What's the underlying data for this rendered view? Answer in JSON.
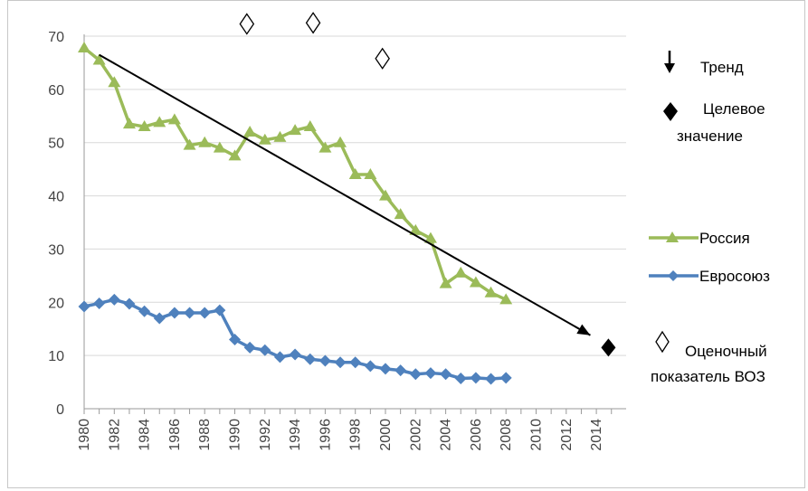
{
  "chart_data": {
    "type": "line",
    "title": "",
    "xlabel": "",
    "ylabel": "",
    "ylim": [
      0,
      70
    ],
    "xlim": [
      1980,
      2015
    ],
    "grid": true,
    "x_ticks": [
      "1980",
      "1982",
      "1984",
      "1986",
      "1988",
      "1990",
      "1992",
      "1994",
      "1996",
      "1998",
      "2000",
      "2002",
      "2004",
      "2006",
      "2008",
      "2010",
      "2012",
      "2014"
    ],
    "y_ticks": [
      "0",
      "10",
      "20",
      "30",
      "40",
      "50",
      "60",
      "70"
    ],
    "series": [
      {
        "name": "Россия",
        "color": "#9bbb59",
        "marker": "triangle",
        "x": [
          1980,
          1981,
          1982,
          1983,
          1984,
          1985,
          1986,
          1987,
          1988,
          1989,
          1990,
          1991,
          1992,
          1993,
          1994,
          1995,
          1996,
          1997,
          1998,
          1999,
          2000,
          2001,
          2002,
          2003,
          2004,
          2005,
          2006,
          2007,
          2008
        ],
        "values": [
          67.8,
          65.5,
          61.3,
          53.5,
          53.0,
          53.8,
          54.3,
          49.5,
          50.0,
          49.0,
          47.5,
          52.0,
          50.5,
          51.0,
          52.3,
          53.0,
          49.0,
          50.0,
          44.0,
          44.0,
          40.0,
          36.5,
          33.5,
          32.0,
          23.5,
          25.5,
          23.7,
          21.8,
          20.5
        ]
      },
      {
        "name": "Евросоюз",
        "color": "#4f81bd",
        "marker": "diamond",
        "x": [
          1980,
          1981,
          1982,
          1983,
          1984,
          1985,
          1986,
          1987,
          1988,
          1989,
          1990,
          1991,
          1992,
          1993,
          1994,
          1995,
          1996,
          1997,
          1998,
          1999,
          2000,
          2001,
          2002,
          2003,
          2004,
          2005,
          2006,
          2007,
          2008
        ],
        "values": [
          19.2,
          19.8,
          20.5,
          19.7,
          18.3,
          17.0,
          18.0,
          18.0,
          18.0,
          18.5,
          13.0,
          11.5,
          11.0,
          9.7,
          10.2,
          9.3,
          9.0,
          8.7,
          8.7,
          8.0,
          7.5,
          7.2,
          6.5,
          6.7,
          6.5,
          5.7,
          5.8,
          5.6,
          5.8
        ]
      }
    ],
    "trend": {
      "name": "Тренд",
      "x": [
        1981,
        2013.6
      ],
      "values": [
        66.5,
        13.8
      ]
    },
    "target": {
      "name_line1": "Целевое",
      "name_line2": "значение",
      "x": [
        2014.8
      ],
      "values": [
        11.5
      ]
    },
    "who_estimates": {
      "name_line1": "Оценочный",
      "name_line2": "показатель ВОЗ",
      "x": [
        1990.8,
        1995.2,
        1999.8
      ],
      "values": [
        72.3,
        72.5,
        65.8
      ]
    },
    "legend_position": "right"
  }
}
